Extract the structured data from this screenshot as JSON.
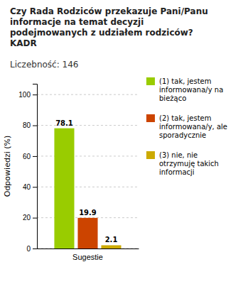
{
  "chart_data": {
    "type": "bar",
    "title": "Czy Rada Rodziców przekazuje Pani/Panu\ninformacje na temat decyzji\npodejmowanych z udziałem rodziców?\nKADR",
    "subtitle": "Liczebność:  146",
    "ylabel": "Odpowiedzi (%)",
    "categories": [
      "Sugestie"
    ],
    "series": [
      {
        "name": "(1) tak, jestem\ninformowana/y na\nbieżąco",
        "color": "#99cc00",
        "values": [
          78.1
        ]
      },
      {
        "name": "(2) tak, jestem\ninformowana/y, ale\nsporadycznie",
        "color": "#cc4400",
        "values": [
          19.9
        ]
      },
      {
        "name": "(3) nie, nie\notrzymuję takich\ninformacji",
        "color": "#ccaa00",
        "values": [
          2.1
        ]
      }
    ],
    "ylim": [
      0,
      107
    ],
    "yticks": [
      0,
      20,
      40,
      60,
      80,
      100
    ],
    "grid": true,
    "legend": "right",
    "data_labels": true
  }
}
